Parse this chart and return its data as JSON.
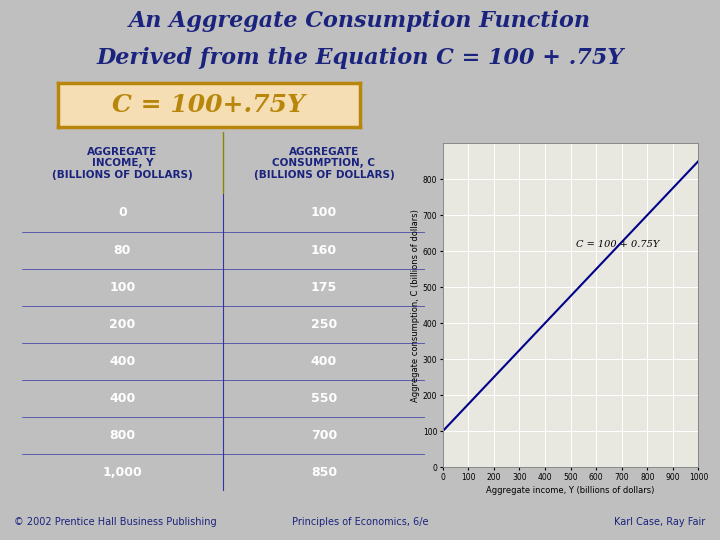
{
  "title_line1": "An Aggregate Consumption Function",
  "title_line2": "Derived from the Equation C = 100 + .75Y",
  "title_color": "#1a237e",
  "title_fontsize": 16,
  "background_color": "#c0bfbf",
  "divider_color": "#b8860b",
  "equation_text": "C = 100+.75Y",
  "equation_box_color": "#f5deb3",
  "equation_border_color": "#b8860b",
  "equation_text_color": "#b8860b",
  "table_header_bg": "#f5c97a",
  "table_header_text": "#1a237e",
  "table_data_bg": "#00008b",
  "table_data_text": "#ffffff",
  "col1_header": "AGGREGATE\nINCOME, Y\n(BILLIONS OF DOLLARS)",
  "col2_header": "AGGREGATE\nCONSUMPTION, C\n(BILLIONS OF DOLLARS)",
  "income_display": [
    "0",
    "80",
    "100",
    "200",
    "400",
    "400",
    "800",
    "1,000"
  ],
  "consumption_display": [
    "100",
    "160",
    "175",
    "250",
    "400",
    "550",
    "700",
    "850"
  ],
  "chart_line_color": "#00008b",
  "chart_xlabel": "Aggregate income, Y (billions of dollars)",
  "chart_ylabel": "Aggregate consumption, C (billions of dollars)",
  "chart_annotation": "C = 100 + 0.75Y",
  "chart_xlim": [
    0,
    1000
  ],
  "chart_ylim": [
    0,
    900
  ],
  "chart_xticks": [
    0,
    100,
    200,
    300,
    400,
    500,
    600,
    700,
    800,
    900,
    1000
  ],
  "chart_yticks": [
    0,
    100,
    200,
    300,
    400,
    500,
    600,
    700,
    800
  ],
  "chart_bg": "#e8e8e0",
  "footer_left": "© 2002 Prentice Hall Business Publishing",
  "footer_center": "Principles of Economics, 6/e",
  "footer_right": "Karl Case, Ray Fair"
}
